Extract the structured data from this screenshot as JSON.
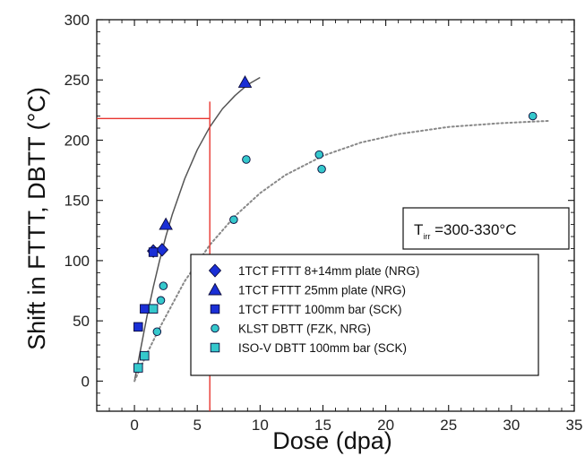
{
  "chart_data": {
    "type": "scatter",
    "title": "",
    "xlabel": "Dose (dpa)",
    "ylabel": "Shift in FTTT, DBTT (°C)",
    "xlim": [
      -3,
      35
    ],
    "ylim": [
      -25,
      300
    ],
    "xticks": [
      0,
      5,
      10,
      15,
      20,
      25,
      30,
      35
    ],
    "yticks": [
      0,
      50,
      100,
      150,
      200,
      250,
      300
    ],
    "xtick_labels": [
      "0",
      "5",
      "10",
      "15",
      "20",
      "25",
      "30",
      "35"
    ],
    "ytick_labels": [
      "0",
      "50",
      "100",
      "150",
      "200",
      "250",
      "300"
    ],
    "grid": false,
    "legend_position": "bottom-right",
    "annotation": {
      "main": "T",
      "sub": "irr",
      "rest": " =300-330°C"
    },
    "series": [
      {
        "name": "1TCT FTTT 8+14mm plate (NRG)",
        "marker": "diamond",
        "color": "#1a2fd6",
        "x": [
          1.5,
          2.2
        ],
        "y": [
          108,
          109
        ]
      },
      {
        "name": "1TCT FTTT  25mm plate (NRG)",
        "marker": "triangle",
        "color": "#1a2fd6",
        "x": [
          2.5,
          8.8
        ],
        "y": [
          130,
          248
        ]
      },
      {
        "name": "1TCT FTTT 100mm bar (SCK)",
        "marker": "square",
        "color": "#1a2fd6",
        "x": [
          0.3,
          0.8,
          1.5
        ],
        "y": [
          45,
          60,
          107
        ]
      },
      {
        "name": "KLST DBTT (FZK, NRG)",
        "marker": "circle",
        "color": "#35c8cc",
        "x": [
          1.8,
          2.1,
          2.3,
          7.9,
          8.9,
          14.7,
          14.9,
          31.7
        ],
        "y": [
          41,
          67,
          79,
          134,
          184,
          188,
          176,
          220
        ]
      },
      {
        "name": "ISO-V DBTT 100mm bar (SCK)",
        "marker": "square",
        "color": "#35c8cc",
        "x": [
          0.3,
          0.8,
          1.5
        ],
        "y": [
          11,
          21,
          60
        ]
      }
    ],
    "fit_curves": [
      {
        "style": "solid",
        "color": "#555555",
        "x": [
          0,
          0.5,
          1,
          1.5,
          2,
          2.5,
          3,
          4,
          5,
          6,
          7,
          8,
          9,
          10
        ],
        "y": [
          0,
          27,
          54,
          78,
          100,
          120,
          138,
          168,
          192,
          211,
          226,
          237,
          246,
          252
        ]
      },
      {
        "style": "dotted",
        "color": "#888888",
        "x": [
          0,
          1,
          2,
          4,
          6,
          8,
          10,
          12,
          15,
          18,
          21,
          25,
          29,
          33
        ],
        "y": [
          0,
          23,
          44,
          83,
          113,
          137,
          156,
          171,
          187,
          198,
          205,
          211,
          214,
          216
        ]
      }
    ],
    "reference_lines": [
      {
        "color": "#e8352f",
        "points": [
          [
            -3,
            218
          ],
          [
            6,
            218
          ]
        ]
      },
      {
        "color": "#e8352f",
        "points": [
          [
            6,
            218
          ],
          [
            6,
            -25
          ]
        ]
      },
      {
        "color": "#e8352f",
        "points": [
          [
            6,
            218
          ],
          [
            6,
            232
          ]
        ]
      }
    ]
  }
}
